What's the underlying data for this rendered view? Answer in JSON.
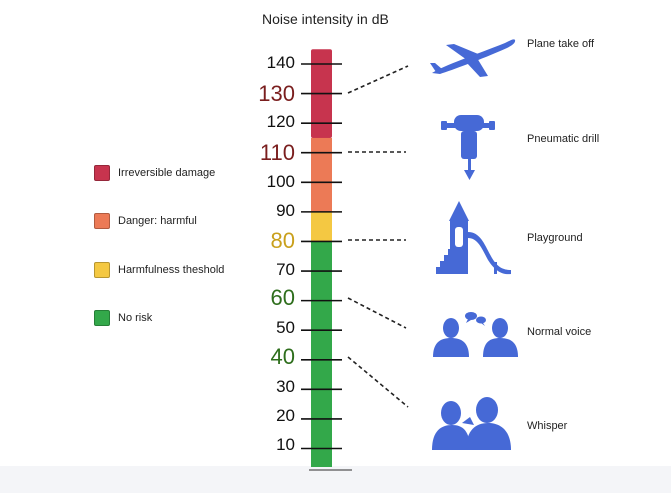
{
  "title": "Noise intensity in dB",
  "colors": {
    "irreversible": "#c7344e",
    "danger": "#ec7a56",
    "threshold": "#f4c842",
    "safe": "#33a84a",
    "tick_dark_red": "#7a1e1e",
    "tick_gold": "#c9a01c",
    "tick_green": "#2e6e1c",
    "icon_blue": "#4669d6"
  },
  "legend": [
    {
      "label": "Irreversible damage",
      "color": "#c7344e"
    },
    {
      "label": "Danger: harmful",
      "color": "#ec7a56"
    },
    {
      "label": "Harmfulness theshold",
      "color": "#f4c842"
    },
    {
      "label": "No risk",
      "color": "#33a84a"
    }
  ],
  "scale": {
    "ticks": [
      "140",
      "130",
      "120",
      "110",
      "100",
      "90",
      "80",
      "70",
      "60",
      "50",
      "40",
      "30",
      "20",
      "10"
    ],
    "segments": [
      {
        "from": 115,
        "to": 145,
        "zone": "irreversible"
      },
      {
        "from": 90,
        "to": 115,
        "zone": "danger"
      },
      {
        "from": 80,
        "to": 90,
        "zone": "threshold"
      },
      {
        "from": 0,
        "to": 80,
        "zone": "safe"
      }
    ]
  },
  "examples": [
    {
      "label": "Plane take off",
      "db": 130,
      "icon": "airplane-icon"
    },
    {
      "label": "Pneumatic drill",
      "db": 110,
      "icon": "pneumatic-drill-icon"
    },
    {
      "label": "Playground",
      "db": 80,
      "icon": "playground-slide-icon"
    },
    {
      "label": "Normal voice",
      "db": 60,
      "icon": "conversation-icon"
    },
    {
      "label": "Whisper",
      "db": 40,
      "icon": "whisper-icon"
    }
  ]
}
